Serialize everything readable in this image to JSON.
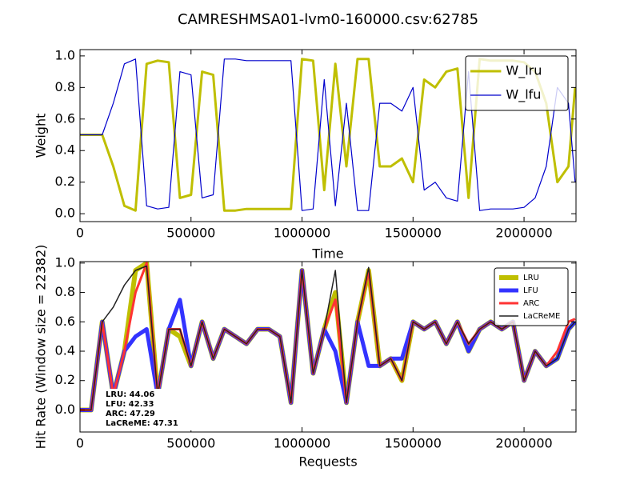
{
  "chart_data": [
    {
      "type": "line",
      "title": "CAMRESHMSA01-lvm0-160000.csv:62785",
      "y_label": "Weight",
      "x_label": "Time",
      "x": [
        0,
        50000,
        100000,
        150000,
        200000,
        250000,
        300000,
        350000,
        400000,
        450000,
        500000,
        550000,
        600000,
        650000,
        700000,
        750000,
        800000,
        850000,
        900000,
        950000,
        1000000,
        1050000,
        1100000,
        1150000,
        1200000,
        1250000,
        1300000,
        1350000,
        1400000,
        1450000,
        1500000,
        1550000,
        1600000,
        1650000,
        1700000,
        1750000,
        1800000,
        1850000,
        1900000,
        1950000,
        2000000,
        2050000,
        2100000,
        2150000,
        2200000,
        2230000
      ],
      "series": [
        {
          "name": "W_lru",
          "color": "#bfbf00",
          "width": 3,
          "values": [
            0.5,
            0.5,
            0.5,
            0.3,
            0.05,
            0.02,
            0.95,
            0.97,
            0.96,
            0.1,
            0.12,
            0.9,
            0.88,
            0.02,
            0.02,
            0.03,
            0.03,
            0.03,
            0.03,
            0.03,
            0.98,
            0.97,
            0.15,
            0.95,
            0.3,
            0.98,
            0.98,
            0.3,
            0.3,
            0.35,
            0.2,
            0.85,
            0.8,
            0.9,
            0.92,
            0.1,
            0.98,
            0.97,
            0.97,
            0.97,
            0.96,
            0.9,
            0.7,
            0.2,
            0.3,
            0.8
          ]
        },
        {
          "name": "W_lfu",
          "color": "#0000cc",
          "width": 1.2,
          "values": [
            0.5,
            0.5,
            0.5,
            0.7,
            0.95,
            0.98,
            0.05,
            0.03,
            0.04,
            0.9,
            0.88,
            0.1,
            0.12,
            0.98,
            0.98,
            0.97,
            0.97,
            0.97,
            0.97,
            0.97,
            0.02,
            0.03,
            0.85,
            0.05,
            0.7,
            0.02,
            0.02,
            0.7,
            0.7,
            0.65,
            0.8,
            0.15,
            0.2,
            0.1,
            0.08,
            0.9,
            0.02,
            0.03,
            0.03,
            0.03,
            0.04,
            0.1,
            0.3,
            0.8,
            0.7,
            0.2
          ]
        }
      ],
      "xlim": [
        0,
        2234000
      ],
      "ylim": [
        -0.05,
        1.04
      ],
      "xticks": [
        0,
        500000,
        1000000,
        1500000,
        2000000
      ],
      "yticks": [
        {
          "value": 0,
          "label": "0.0"
        },
        0.2,
        0.4,
        0.6,
        0.8,
        {
          "value": 1,
          "label": "1.0"
        }
      ],
      "legend": "upper right"
    },
    {
      "type": "line",
      "y_label": "Hit Rate (Window size = 22382)",
      "x_label": "Requests",
      "x": [
        0,
        50000,
        100000,
        150000,
        200000,
        250000,
        300000,
        350000,
        400000,
        450000,
        500000,
        550000,
        600000,
        650000,
        700000,
        750000,
        800000,
        850000,
        900000,
        950000,
        1000000,
        1050000,
        1100000,
        1150000,
        1200000,
        1250000,
        1300000,
        1350000,
        1400000,
        1450000,
        1500000,
        1550000,
        1600000,
        1650000,
        1700000,
        1750000,
        1800000,
        1850000,
        1900000,
        1950000,
        2000000,
        2050000,
        2100000,
        2150000,
        2200000,
        2230000
      ],
      "series": [
        {
          "name": "LRU",
          "color": "#bfbf00",
          "width": 6,
          "values": [
            0,
            0,
            0.6,
            0.1,
            0.4,
            0.95,
            1.0,
            0.1,
            0.55,
            0.5,
            0.3,
            0.6,
            0.35,
            0.55,
            0.5,
            0.45,
            0.55,
            0.55,
            0.5,
            0.05,
            0.95,
            0.25,
            0.55,
            0.8,
            0.05,
            0.6,
            0.95,
            0.3,
            0.35,
            0.2,
            0.6,
            0.55,
            0.6,
            0.45,
            0.6,
            0.4,
            0.55,
            0.6,
            0.55,
            0.6,
            0.2,
            0.4,
            0.3,
            0.35,
            0.55,
            0.6
          ]
        },
        {
          "name": "LFU",
          "color": "#3333ff",
          "width": 5,
          "values": [
            0,
            0,
            0.6,
            0.1,
            0.4,
            0.5,
            0.55,
            0.1,
            0.55,
            0.75,
            0.3,
            0.6,
            0.35,
            0.55,
            0.5,
            0.45,
            0.55,
            0.55,
            0.5,
            0.05,
            0.95,
            0.25,
            0.55,
            0.4,
            0.05,
            0.6,
            0.3,
            0.3,
            0.35,
            0.35,
            0.6,
            0.55,
            0.6,
            0.45,
            0.6,
            0.4,
            0.55,
            0.6,
            0.55,
            0.6,
            0.2,
            0.4,
            0.3,
            0.35,
            0.55,
            0.6
          ]
        },
        {
          "name": "ARC",
          "color": "#ff3333",
          "width": 3,
          "values": [
            0,
            0,
            0.6,
            0.1,
            0.4,
            0.8,
            1.0,
            0.1,
            0.55,
            0.55,
            0.3,
            0.6,
            0.35,
            0.55,
            0.5,
            0.45,
            0.55,
            0.55,
            0.5,
            0.05,
            0.95,
            0.25,
            0.55,
            0.75,
            0.05,
            0.6,
            0.95,
            0.3,
            0.35,
            0.2,
            0.6,
            0.55,
            0.6,
            0.45,
            0.6,
            0.45,
            0.55,
            0.6,
            0.55,
            0.6,
            0.2,
            0.4,
            0.3,
            0.4,
            0.6,
            0.62
          ]
        },
        {
          "name": "LaCReME",
          "color": "#222222",
          "width": 1.5,
          "values": [
            0,
            0,
            0.6,
            0.7,
            0.85,
            0.95,
            0.98,
            0.1,
            0.55,
            0.55,
            0.3,
            0.6,
            0.35,
            0.55,
            0.5,
            0.45,
            0.55,
            0.55,
            0.5,
            0.05,
            0.95,
            0.25,
            0.55,
            0.95,
            0.05,
            0.6,
            0.97,
            0.3,
            0.35,
            0.2,
            0.6,
            0.55,
            0.6,
            0.45,
            0.6,
            0.45,
            0.55,
            0.6,
            0.55,
            0.6,
            0.2,
            0.4,
            0.3,
            0.35,
            0.55,
            0.6
          ]
        }
      ],
      "xlim": [
        0,
        2234000
      ],
      "ylim": [
        -0.15,
        1.01
      ],
      "xticks": [
        0,
        500000,
        1000000,
        1500000,
        2000000
      ],
      "yticks": [
        {
          "value": 0,
          "label": "0.0"
        },
        0.2,
        0.4,
        0.6,
        0.8,
        {
          "value": 1,
          "label": "1.0"
        }
      ],
      "legend": "upper right",
      "annotations": [
        "LRU:  44.06",
        "LFU:  42.33",
        "ARC:  47.29",
        "LaCReME:  47.31"
      ]
    }
  ]
}
